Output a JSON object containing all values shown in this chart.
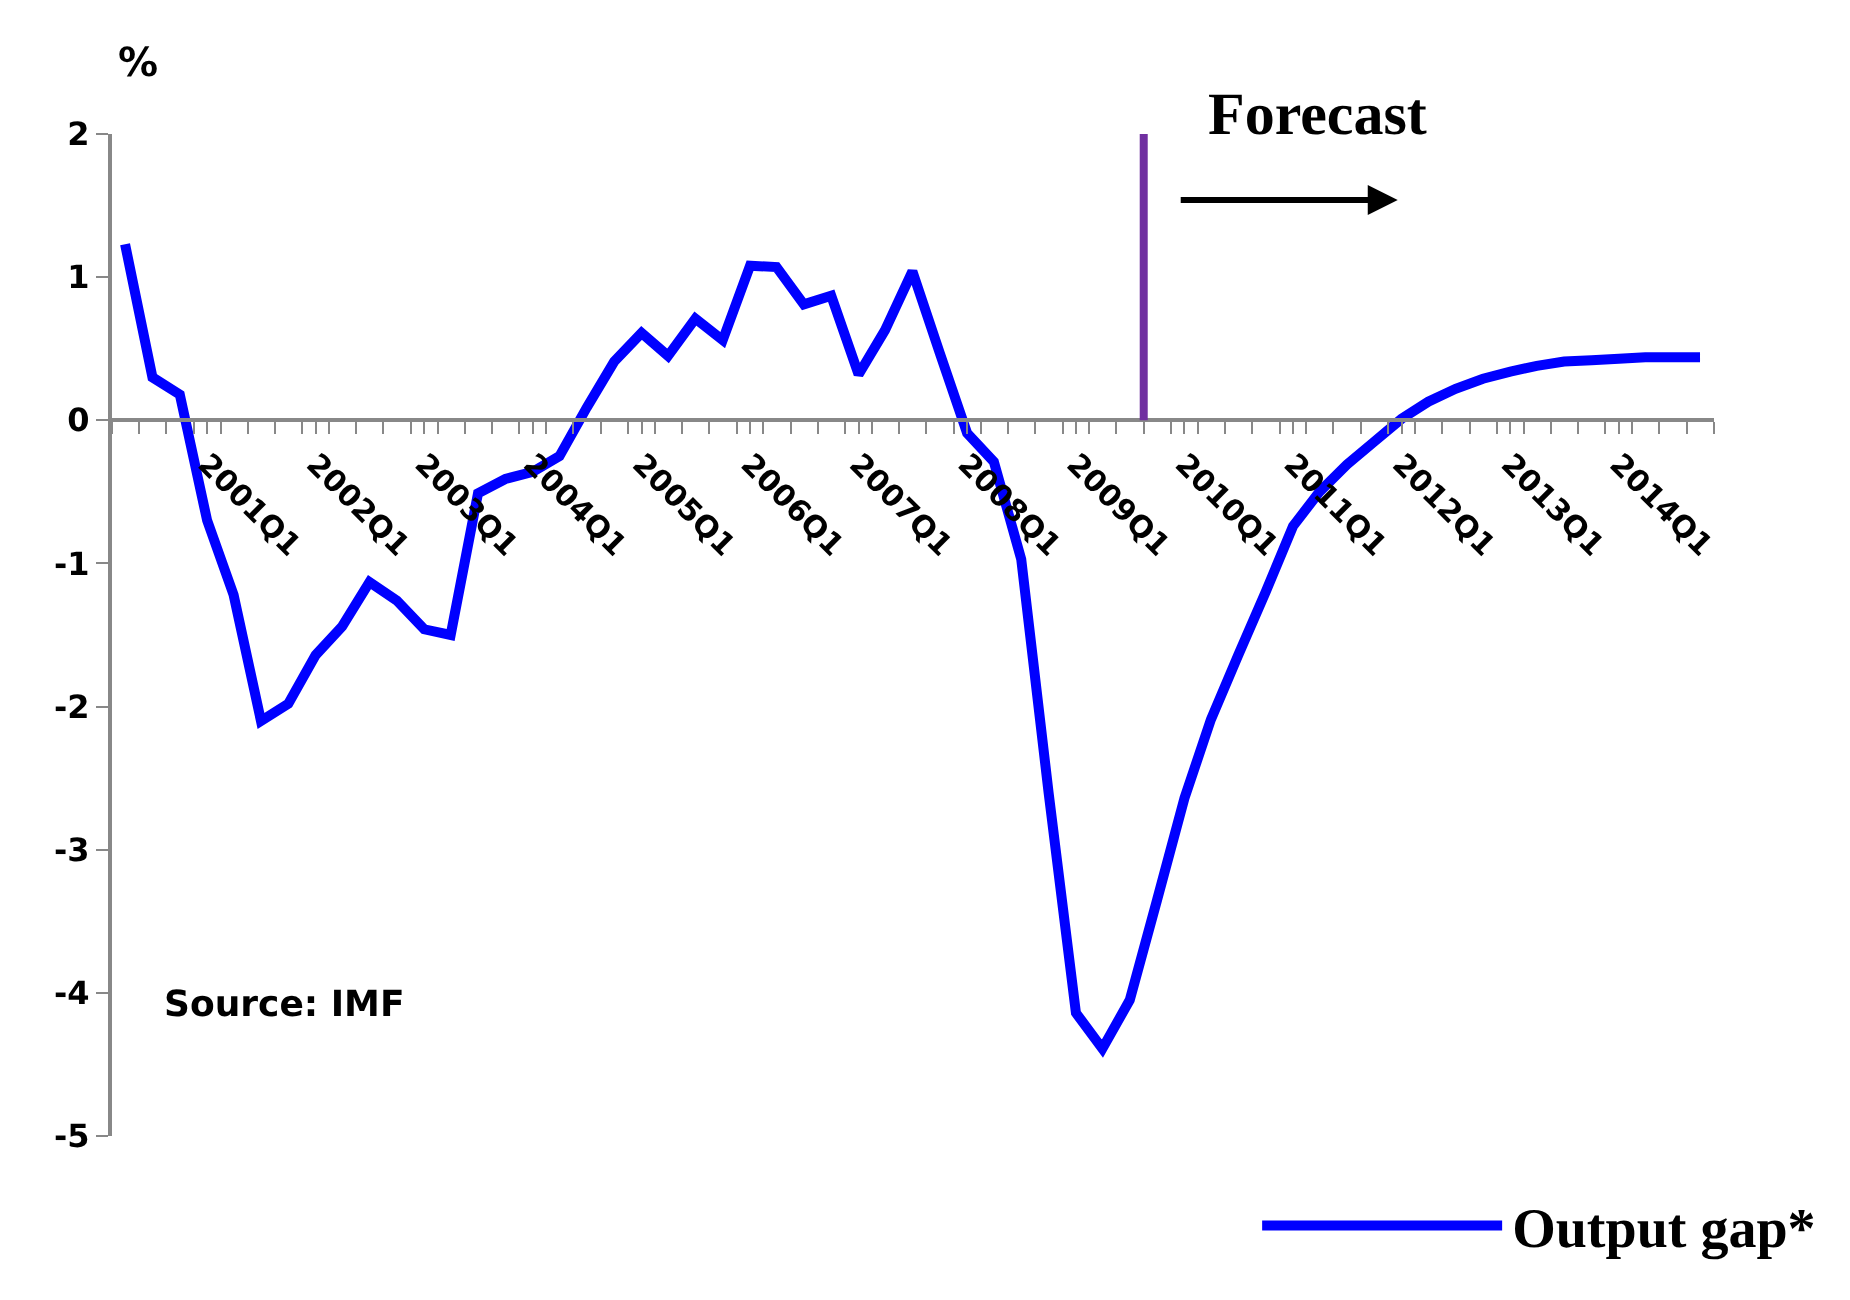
{
  "chart_data": {
    "type": "line",
    "ylabel": "%",
    "legend": "bottom right",
    "x": [
      "2000-05-15",
      "2000-08-15",
      "2000-11-15",
      "2001-02-15",
      "2001-05-15",
      "2001-08-15",
      "2001-11-15",
      "2002-02-15",
      "2002-05-15",
      "2002-08-15",
      "2002-11-15",
      "2003-02-15",
      "2003-05-15",
      "2003-08-15",
      "2003-11-15",
      "2004-02-15",
      "2004-05-15",
      "2004-08-15",
      "2004-11-15",
      "2005-02-15",
      "2005-05-15",
      "2005-08-15",
      "2005-11-15",
      "2006-02-15",
      "2006-05-15",
      "2006-08-15",
      "2006-11-15",
      "2007-02-15",
      "2007-05-15",
      "2007-08-15",
      "2007-11-15",
      "2008-02-15",
      "2008-05-15",
      "2008-08-15",
      "2008-11-15",
      "2009-02-15",
      "2009-05-15",
      "2009-08-15",
      "2009-11-15",
      "2010-02-15",
      "2010-05-15",
      "2010-08-15",
      "2010-11-15",
      "2011-02-15",
      "2011-05-15",
      "2011-08-15",
      "2011-11-15",
      "2012-02-15",
      "2012-05-15",
      "2012-08-15",
      "2012-11-15",
      "2013-02-15",
      "2013-05-15",
      "2013-08-15",
      "2013-11-15",
      "2014-02-15",
      "2014-05-15",
      "2014-08-15",
      "2014-11-15"
    ],
    "series": [
      {
        "name": "Output gap*",
        "color": "#0000ff",
        "values": [
          1.23,
          0.3,
          0.18,
          -0.7,
          -1.22,
          -2.1,
          -1.98,
          -1.64,
          -1.44,
          -1.13,
          -1.26,
          -1.46,
          -1.5,
          -0.51,
          -0.41,
          -0.36,
          -0.25,
          0.09,
          0.41,
          0.61,
          0.45,
          0.71,
          0.56,
          1.08,
          1.07,
          0.81,
          0.87,
          0.32,
          0.63,
          1.04,
          0.47,
          -0.09,
          -0.29,
          -0.97,
          -2.6,
          -4.14,
          -4.39,
          -4.05,
          -3.35,
          -2.64,
          -2.09,
          -1.64,
          -1.2,
          -0.74,
          -0.5,
          -0.31,
          -0.15,
          0.01,
          0.13,
          0.22,
          0.29,
          0.34,
          0.38,
          0.41,
          0.42,
          0.43,
          0.44,
          0.44,
          0.44
        ]
      }
    ],
    "xlim": [
      "2000-04-01",
      "2015-01-01"
    ],
    "xticks": [
      {
        "value": "2000-04-01",
        "label": null
      },
      {
        "value": "2000-07-01",
        "label": null
      },
      {
        "value": "2000-10-01",
        "label": null
      },
      {
        "value": "2001-01-01",
        "label": null
      },
      {
        "value": "2001-02-15",
        "label": "2001Q1"
      },
      {
        "value": "2001-04-01",
        "label": null
      },
      {
        "value": "2001-07-01",
        "label": null
      },
      {
        "value": "2001-10-01",
        "label": null
      },
      {
        "value": "2002-01-01",
        "label": null
      },
      {
        "value": "2002-02-15",
        "label": "2002Q1"
      },
      {
        "value": "2002-04-01",
        "label": null
      },
      {
        "value": "2002-07-01",
        "label": null
      },
      {
        "value": "2002-10-01",
        "label": null
      },
      {
        "value": "2003-01-01",
        "label": null
      },
      {
        "value": "2003-02-15",
        "label": "2003Q1"
      },
      {
        "value": "2003-04-01",
        "label": null
      },
      {
        "value": "2003-07-01",
        "label": null
      },
      {
        "value": "2003-10-01",
        "label": null
      },
      {
        "value": "2004-01-01",
        "label": null
      },
      {
        "value": "2004-02-15",
        "label": "2004Q1"
      },
      {
        "value": "2004-04-01",
        "label": null
      },
      {
        "value": "2004-07-01",
        "label": null
      },
      {
        "value": "2004-10-01",
        "label": null
      },
      {
        "value": "2005-01-01",
        "label": null
      },
      {
        "value": "2005-02-15",
        "label": "2005Q1"
      },
      {
        "value": "2005-04-01",
        "label": null
      },
      {
        "value": "2005-07-01",
        "label": null
      },
      {
        "value": "2005-10-01",
        "label": null
      },
      {
        "value": "2006-01-01",
        "label": null
      },
      {
        "value": "2006-02-15",
        "label": "2006Q1"
      },
      {
        "value": "2006-04-01",
        "label": null
      },
      {
        "value": "2006-07-01",
        "label": null
      },
      {
        "value": "2006-10-01",
        "label": null
      },
      {
        "value": "2007-01-01",
        "label": null
      },
      {
        "value": "2007-02-15",
        "label": "2007Q1"
      },
      {
        "value": "2007-04-01",
        "label": null
      },
      {
        "value": "2007-07-01",
        "label": null
      },
      {
        "value": "2007-10-01",
        "label": null
      },
      {
        "value": "2008-01-01",
        "label": null
      },
      {
        "value": "2008-02-15",
        "label": "2008Q1"
      },
      {
        "value": "2008-04-01",
        "label": null
      },
      {
        "value": "2008-07-01",
        "label": null
      },
      {
        "value": "2008-10-01",
        "label": null
      },
      {
        "value": "2009-01-01",
        "label": null
      },
      {
        "value": "2009-02-15",
        "label": "2009Q1"
      },
      {
        "value": "2009-04-01",
        "label": null
      },
      {
        "value": "2009-07-01",
        "label": null
      },
      {
        "value": "2009-10-01",
        "label": null
      },
      {
        "value": "2010-01-01",
        "label": null
      },
      {
        "value": "2010-02-15",
        "label": "2010Q1"
      },
      {
        "value": "2010-04-01",
        "label": null
      },
      {
        "value": "2010-07-01",
        "label": null
      },
      {
        "value": "2010-10-01",
        "label": null
      },
      {
        "value": "2011-01-01",
        "label": null
      },
      {
        "value": "2011-02-15",
        "label": "2011Q1"
      },
      {
        "value": "2011-04-01",
        "label": null
      },
      {
        "value": "2011-07-01",
        "label": null
      },
      {
        "value": "2011-10-01",
        "label": null
      },
      {
        "value": "2012-01-01",
        "label": null
      },
      {
        "value": "2012-02-15",
        "label": "2012Q1"
      },
      {
        "value": "2012-04-01",
        "label": null
      },
      {
        "value": "2012-07-01",
        "label": null
      },
      {
        "value": "2012-10-01",
        "label": null
      },
      {
        "value": "2013-01-01",
        "label": null
      },
      {
        "value": "2013-02-15",
        "label": "2013Q1"
      },
      {
        "value": "2013-04-01",
        "label": null
      },
      {
        "value": "2013-07-01",
        "label": null
      },
      {
        "value": "2013-10-01",
        "label": null
      },
      {
        "value": "2014-01-01",
        "label": null
      },
      {
        "value": "2014-02-15",
        "label": "2014Q1"
      },
      {
        "value": "2014-04-01",
        "label": null
      },
      {
        "value": "2014-07-01",
        "label": null
      },
      {
        "value": "2014-10-01",
        "label": null
      },
      {
        "value": "2015-01-01",
        "label": null
      }
    ],
    "ylim": [
      -5,
      2
    ],
    "yticks": [
      -5,
      -4,
      -3,
      -2,
      -1,
      0,
      1,
      2
    ],
    "grid": false,
    "marker": "none",
    "line_style": "solid",
    "ref_lines": [
      {
        "axis": "x",
        "value": "2009-10-01",
        "label": "Forecast",
        "color": "#7030a0"
      }
    ],
    "annotations": [
      "Source: IMF"
    ]
  }
}
